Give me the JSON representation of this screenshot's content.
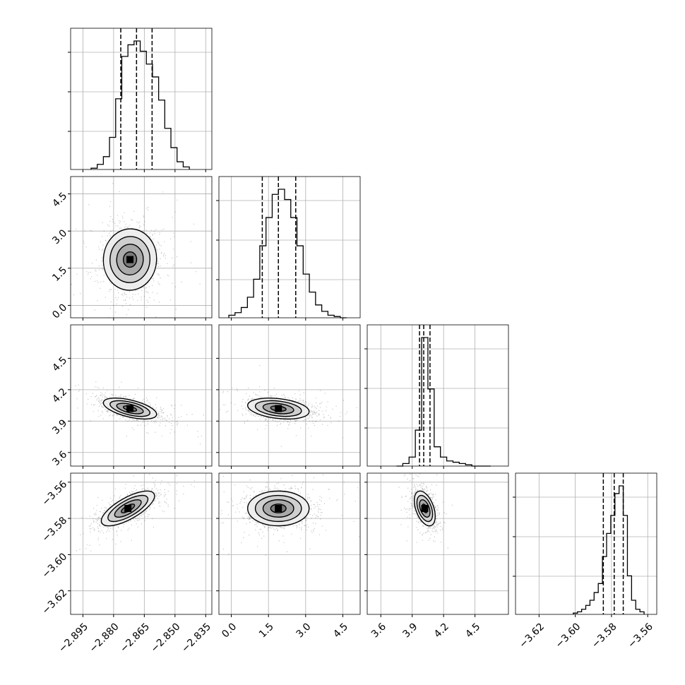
{
  "chart_data": {
    "type": "corner",
    "grid": true,
    "params": [
      {
        "range": [
          -2.901,
          -2.832
        ],
        "ticks": [
          -2.895,
          -2.88,
          -2.865,
          -2.85,
          -2.835
        ],
        "tick_labels": [
          "−2.895",
          "−2.880",
          "−2.865",
          "−2.850",
          "−2.835"
        ],
        "quantiles": [
          -2.8765,
          -2.8688,
          -2.8612
        ],
        "hist_bins": [
          -2.891,
          -2.888,
          -2.885,
          -2.882,
          -2.879,
          -2.876,
          -2.873,
          -2.87,
          -2.867,
          -2.864,
          -2.861,
          -2.858,
          -2.855,
          -2.852,
          -2.849,
          -2.846
        ],
        "hist_counts": [
          0.01,
          0.04,
          0.1,
          0.25,
          0.55,
          0.88,
          0.97,
          1.0,
          0.92,
          0.82,
          0.72,
          0.54,
          0.32,
          0.17,
          0.06,
          0.02
        ],
        "center": -2.868,
        "spread": 0.0065
      },
      {
        "range": [
          -0.5,
          5.2
        ],
        "ticks": [
          0.0,
          1.5,
          3.0,
          4.5
        ],
        "tick_labels": [
          "0.0",
          "1.5",
          "3.0",
          "4.5"
        ],
        "quantiles": [
          1.25,
          1.9,
          2.6
        ],
        "hist_bins": [
          -0.1,
          0.15,
          0.4,
          0.65,
          0.9,
          1.15,
          1.4,
          1.65,
          1.9,
          2.15,
          2.4,
          2.65,
          2.9,
          3.15,
          3.4,
          3.65,
          3.9,
          4.15,
          4.4
        ],
        "hist_counts": [
          0.02,
          0.04,
          0.08,
          0.16,
          0.3,
          0.56,
          0.78,
          0.96,
          1.0,
          0.92,
          0.78,
          0.56,
          0.34,
          0.2,
          0.1,
          0.05,
          0.02,
          0.01,
          0.0
        ],
        "center": 1.9,
        "spread": 0.62
      },
      {
        "range": [
          3.47,
          4.82
        ],
        "ticks": [
          3.6,
          3.9,
          4.2,
          4.5
        ],
        "tick_labels": [
          "3.6",
          "3.9",
          "4.2",
          "4.5"
        ],
        "quantiles": [
          3.97,
          4.01,
          4.07
        ],
        "hist_bins": [
          3.75,
          3.81,
          3.87,
          3.93,
          3.99,
          4.05,
          4.11,
          4.17,
          4.23,
          4.29,
          4.35,
          4.41,
          4.47,
          4.53,
          4.59
        ],
        "hist_counts": [
          0.0,
          0.02,
          0.07,
          0.28,
          1.0,
          0.6,
          0.15,
          0.07,
          0.04,
          0.03,
          0.02,
          0.01,
          0.0,
          0.0,
          0.0
        ],
        "center": 4.03,
        "spread": 0.05
      },
      {
        "range": [
          -3.633,
          -3.555
        ],
        "ticks": [
          -3.62,
          -3.6,
          -3.58,
          -3.56
        ],
        "tick_labels": [
          "−3.62",
          "−3.60",
          "−3.58",
          "−3.56"
        ],
        "quantiles": [
          -3.5845,
          -3.5785,
          -3.5735
        ],
        "hist_bins": [
          -3.6011,
          -3.5988,
          -3.5965,
          -3.5942,
          -3.5919,
          -3.5896,
          -3.5873,
          -3.585,
          -3.5827,
          -3.5804,
          -3.5781,
          -3.5758,
          -3.5735,
          -3.5712,
          -3.5689,
          -3.5666,
          -3.5643
        ],
        "hist_counts": [
          0.01,
          0.02,
          0.04,
          0.07,
          0.11,
          0.17,
          0.24,
          0.45,
          0.63,
          0.77,
          0.94,
          1.0,
          0.77,
          0.3,
          0.11,
          0.04,
          0.02
        ],
        "center": -3.579,
        "spread": 0.0048
      }
    ],
    "pairs": [
      {
        "row": 1,
        "col": 0,
        "correlation": 0.02,
        "mode": [
          -2.872,
          1.85
        ]
      },
      {
        "row": 2,
        "col": 0,
        "correlation": -0.55,
        "mode": [
          -2.872,
          4.02
        ]
      },
      {
        "row": 2,
        "col": 1,
        "correlation": -0.3,
        "mode": [
          1.9,
          4.02
        ]
      },
      {
        "row": 3,
        "col": 0,
        "correlation": 0.72,
        "mode": [
          -2.873,
          -3.5745
        ]
      },
      {
        "row": 3,
        "col": 1,
        "correlation": 0.0,
        "mode": [
          1.9,
          -3.5745
        ]
      },
      {
        "row": 3,
        "col": 2,
        "correlation": -0.45,
        "mode": [
          4.02,
          -3.5745
        ]
      }
    ]
  }
}
